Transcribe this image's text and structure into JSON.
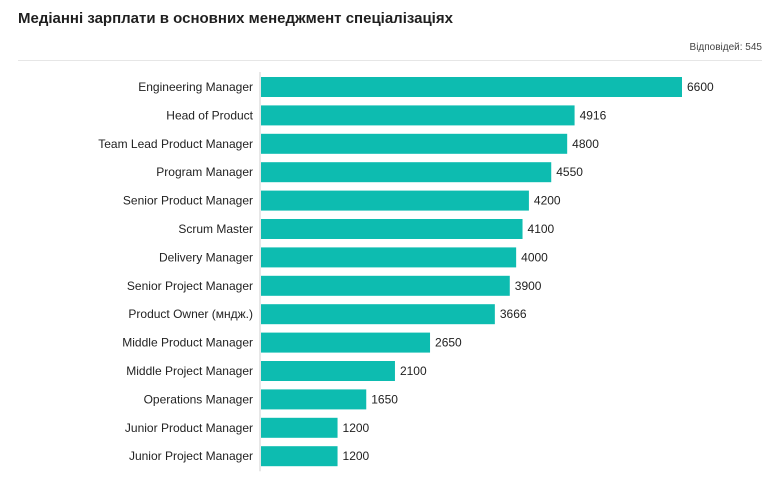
{
  "title": "Медіанні зарплати в основних менеджмент спеціалізаціях",
  "responses_label": "Відповідей: 545",
  "colors": {
    "bar": "#0dbcb0",
    "axis_line": "#cfcfcf",
    "divider": "#e6e6e6"
  },
  "chart_data": {
    "type": "bar",
    "orientation": "horizontal",
    "categories": [
      "Engineering Manager",
      "Head of Product",
      "Team Lead Product Manager",
      "Program Manager",
      "Senior Product Manager",
      "Scrum Master",
      "Delivery Manager",
      "Senior Project Manager",
      "Product Owner (мндж.)",
      "Middle Product Manager",
      "Middle Project Manager",
      "Operations Manager",
      "Junior Product Manager",
      "Junior Project Manager"
    ],
    "values": [
      6600,
      4916,
      4800,
      4550,
      4200,
      4100,
      4000,
      3900,
      3666,
      2650,
      2100,
      1650,
      1200,
      1200
    ],
    "title": "Медіанні зарплати в основних менеджмент спеціалізаціях",
    "xlabel": "",
    "ylabel": "",
    "xlim": [
      0,
      6600
    ],
    "grid": false,
    "data_labels": true
  }
}
